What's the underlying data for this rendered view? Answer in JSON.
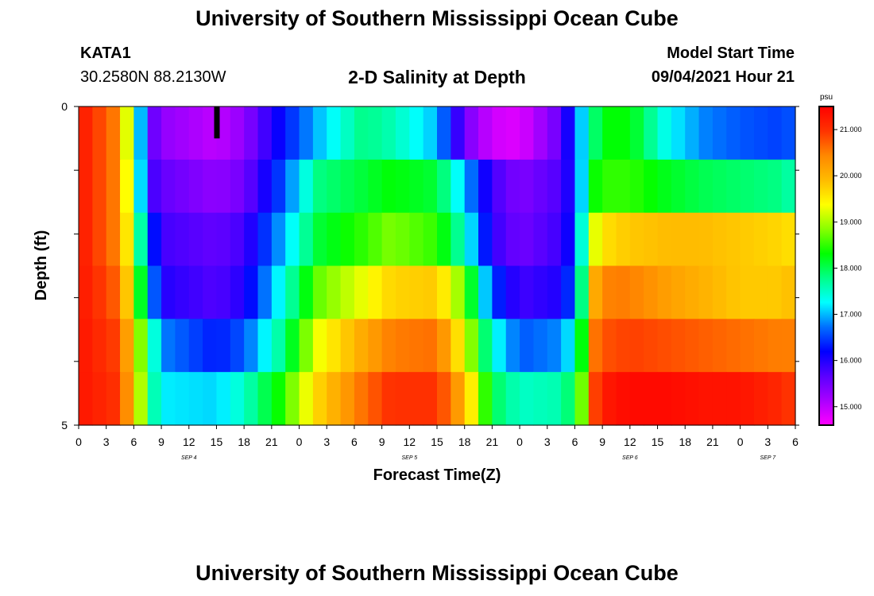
{
  "header": {
    "title": "University of Southern Mississippi Ocean Cube",
    "station": "KATA1",
    "coords": "30.2580N  88.2130W",
    "subtitle": "2-D Salinity at Depth",
    "model_start_label": "Model Start Time",
    "model_start_value": "09/04/2021 Hour 21",
    "footer_title": "University of Southern Mississippi Ocean Cube"
  },
  "colors": {
    "scale": [
      "#ff00ff",
      "#aa00ff",
      "#5a00ff",
      "#0000ff",
      "#0070ff",
      "#00ffff",
      "#00ff88",
      "#00ff00",
      "#88ff00",
      "#ffff00",
      "#ffbb00",
      "#ff8800",
      "#ff3300",
      "#ff0000"
    ],
    "marker": "#000000"
  },
  "chart_data": {
    "type": "heatmap",
    "xlabel": "Forecast Time(Z)",
    "ylabel": "Depth (ft)",
    "x_ticks": [
      "0",
      "3",
      "6",
      "9",
      "12",
      "15",
      "18",
      "21",
      "0",
      "3",
      "6",
      "9",
      "12",
      "15",
      "18",
      "21",
      "0",
      "3",
      "6",
      "9",
      "12",
      "15",
      "18",
      "21",
      "0",
      "3",
      "6"
    ],
    "day_labels": [
      {
        "label": "SEP 4",
        "hour": 12
      },
      {
        "label": "SEP 5",
        "hour": 36
      },
      {
        "label": "SEP 6",
        "hour": 60
      },
      {
        "label": "SEP 7",
        "hour": 75
      }
    ],
    "xlim": [
      0,
      78
    ],
    "ylim": [
      0,
      5
    ],
    "y_ticks": [
      "0",
      "",
      "",
      "",
      "",
      "5"
    ],
    "colorbar": {
      "unit": "psu",
      "range": [
        14.6,
        21.5
      ],
      "ticks": [
        "15.000",
        "16.000",
        "17.000",
        "18.000",
        "19.000",
        "20.000",
        "21.000"
      ]
    },
    "marker_hour": 15,
    "depth_rows": [
      "0-1 ft",
      "1-2 ft",
      "2-3 ft",
      "3-4 ft",
      "4-5 ft"
    ],
    "time_control_hours": [
      0,
      4,
      6,
      7,
      8,
      9,
      15,
      18,
      22,
      26,
      31,
      34,
      39,
      42,
      45,
      48,
      52,
      54,
      55,
      56,
      57,
      58,
      60,
      64,
      68,
      72,
      76,
      78
    ],
    "salinity_psu": [
      [
        21.3,
        20.5,
        18.5,
        16.5,
        15.6,
        15.3,
        15.0,
        15.3,
        16.2,
        17.0,
        17.8,
        17.6,
        17.0,
        15.5,
        14.9,
        14.8,
        15.5,
        16.4,
        17.3,
        17.8,
        18.3,
        18.3,
        18.3,
        17.3,
        16.8,
        16.6,
        16.5,
        16.6
      ],
      [
        21.3,
        20.5,
        18.7,
        16.6,
        15.8,
        15.6,
        15.3,
        15.5,
        16.5,
        17.8,
        18.1,
        18.3,
        18.1,
        17.0,
        15.8,
        15.4,
        15.7,
        16.2,
        17.4,
        18.3,
        18.5,
        18.5,
        18.5,
        18.2,
        18.0,
        17.9,
        17.8,
        17.6
      ],
      [
        21.3,
        20.5,
        19.0,
        17.2,
        16.4,
        15.8,
        15.6,
        15.8,
        16.9,
        18.1,
        18.5,
        18.8,
        18.5,
        17.5,
        15.9,
        15.5,
        15.8,
        16.3,
        17.8,
        19.2,
        19.5,
        19.7,
        19.8,
        19.9,
        19.9,
        19.8,
        19.7,
        19.6
      ],
      [
        21.3,
        20.7,
        19.3,
        17.8,
        16.8,
        16.0,
        15.7,
        16.0,
        17.3,
        18.7,
        19.3,
        19.7,
        19.8,
        18.7,
        16.5,
        15.8,
        16.0,
        16.6,
        18.2,
        20.0,
        20.4,
        20.5,
        20.5,
        20.2,
        20.0,
        19.8,
        19.8,
        19.9
      ],
      [
        21.3,
        20.9,
        19.8,
        18.5,
        17.6,
        16.8,
        16.3,
        16.6,
        17.7,
        19.3,
        20.1,
        20.5,
        20.6,
        19.3,
        17.4,
        16.6,
        16.8,
        17.3,
        18.6,
        20.5,
        20.8,
        20.8,
        20.9,
        20.8,
        20.7,
        20.6,
        20.5,
        20.5
      ],
      [
        21.3,
        21.0,
        20.0,
        18.7,
        17.7,
        17.2,
        17.1,
        17.5,
        18.4,
        19.7,
        20.6,
        21.0,
        21.0,
        20.0,
        18.0,
        17.5,
        17.6,
        18.0,
        19.0,
        20.8,
        21.2,
        21.3,
        21.4,
        21.4,
        21.3,
        21.3,
        21.1,
        20.9
      ]
    ]
  }
}
